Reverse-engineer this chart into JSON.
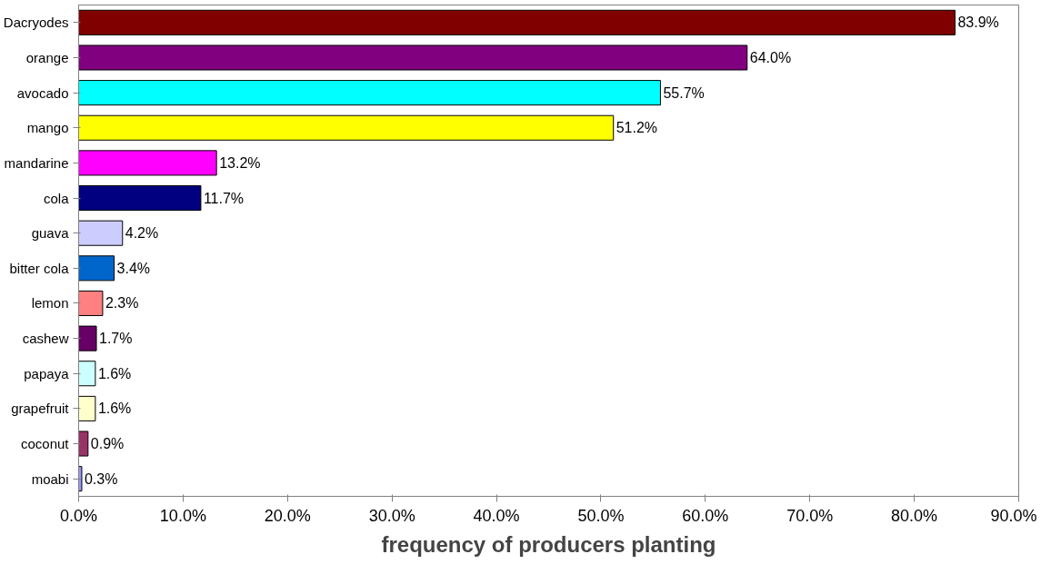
{
  "chart_data": {
    "type": "bar",
    "orientation": "horizontal",
    "xlabel": "frequency of producers planting",
    "categories": [
      "Dacryodes",
      "orange",
      "avocado",
      "mango",
      "mandarine",
      "cola",
      "guava",
      "bitter cola",
      "lemon",
      "cashew",
      "papaya",
      "grapefruit",
      "coconut",
      "moabi"
    ],
    "values": [
      83.9,
      64.0,
      55.7,
      51.2,
      13.2,
      11.7,
      4.2,
      3.4,
      2.3,
      1.7,
      1.6,
      1.6,
      0.9,
      0.3
    ],
    "value_labels": [
      "83.9%",
      "64.0%",
      "55.7%",
      "51.2%",
      "13.2%",
      "11.7%",
      "4.2%",
      "3.4%",
      "2.3%",
      "1.7%",
      "1.6%",
      "1.6%",
      "0.9%",
      "0.3%"
    ],
    "colors": [
      "#800000",
      "#800080",
      "#00ffff",
      "#ffff00",
      "#ff00ff",
      "#000080",
      "#ccccff",
      "#0066cc",
      "#ff8080",
      "#660066",
      "#ccffff",
      "#ffffcc",
      "#993366",
      "#9999ff"
    ],
    "xlim": [
      0,
      90
    ],
    "xticks": [
      {
        "value": 0,
        "label": "0.0%"
      },
      {
        "value": 10,
        "label": "10.0%"
      },
      {
        "value": 20,
        "label": "20.0%"
      },
      {
        "value": 30,
        "label": "30.0%"
      },
      {
        "value": 40,
        "label": "40.0%"
      },
      {
        "value": 50,
        "label": "50.0%"
      },
      {
        "value": 60,
        "label": "60.0%"
      },
      {
        "value": 70,
        "label": "70.0%"
      },
      {
        "value": 80,
        "label": "80.0%"
      },
      {
        "value": 90,
        "label": "90.0%"
      }
    ],
    "grid": false
  }
}
